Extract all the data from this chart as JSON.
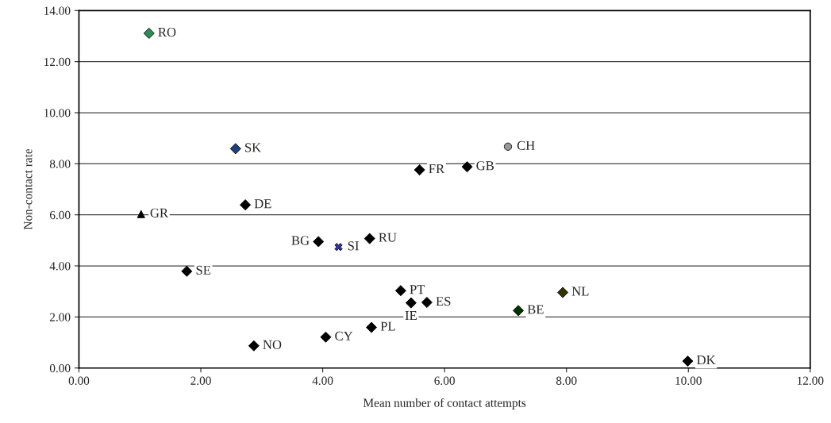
{
  "chart_data": {
    "type": "scatter",
    "xlabel": "Mean number of contact attempts",
    "ylabel": "Non-contact rate",
    "xlim": [
      0,
      12
    ],
    "xticks": [
      {
        "value": 0,
        "label": "0.00"
      },
      {
        "value": 2,
        "label": "2.00"
      },
      {
        "value": 4,
        "label": "4.00"
      },
      {
        "value": 6,
        "label": "6.00"
      },
      {
        "value": 8,
        "label": "8.00"
      },
      {
        "value": 10,
        "label": "10.00"
      },
      {
        "value": 12,
        "label": "12.00"
      }
    ],
    "ylim": [
      0,
      14
    ],
    "yticks": [
      {
        "value": 0,
        "label": "0.00"
      },
      {
        "value": 2,
        "label": "2.00"
      },
      {
        "value": 4,
        "label": "4.00"
      },
      {
        "value": 6,
        "label": "6.00"
      },
      {
        "value": 8,
        "label": "8.00"
      },
      {
        "value": 10,
        "label": "10.00"
      },
      {
        "value": 12,
        "label": "12.00"
      },
      {
        "value": 14,
        "label": "14.00"
      }
    ],
    "grid": "y",
    "legend": false,
    "marker": "diamond",
    "series": [
      {
        "name": "RO",
        "color": "#2e8b57",
        "x": [
          1.15
        ],
        "values": [
          13.11
        ]
      },
      {
        "name": "SK",
        "color": "#1f3f7a",
        "x": [
          2.57
        ],
        "values": [
          8.59
        ]
      },
      {
        "name": "GR",
        "color": "#000000",
        "x": [
          1.02
        ],
        "values": [
          6.03
        ],
        "marker": "triangle"
      },
      {
        "name": "DE",
        "color": "#000000",
        "x": [
          2.73
        ],
        "values": [
          6.39
        ]
      },
      {
        "name": "BG",
        "color": "#000000",
        "x": [
          3.93
        ],
        "values": [
          4.95
        ]
      },
      {
        "name": "SI",
        "color": "#333399",
        "x": [
          4.26
        ],
        "values": [
          4.74
        ],
        "marker": "cross"
      },
      {
        "name": "RU",
        "color": "#000000",
        "x": [
          4.77
        ],
        "values": [
          5.07
        ]
      },
      {
        "name": "SE",
        "color": "#000000",
        "x": [
          1.77
        ],
        "values": [
          3.79
        ]
      },
      {
        "name": "NO",
        "color": "#000000",
        "x": [
          2.87
        ],
        "values": [
          0.87
        ]
      },
      {
        "name": "CY",
        "color": "#000000",
        "x": [
          4.05
        ],
        "values": [
          1.21
        ]
      },
      {
        "name": "PL",
        "color": "#000000",
        "x": [
          4.8
        ],
        "values": [
          1.59
        ]
      },
      {
        "name": "CH",
        "color": "#999999",
        "x": [
          7.04
        ],
        "values": [
          8.67
        ],
        "marker": "circle"
      },
      {
        "name": "FR",
        "color": "#000000",
        "x": [
          5.59
        ],
        "values": [
          7.76
        ]
      },
      {
        "name": "GB",
        "color": "#000000",
        "x": [
          6.37
        ],
        "values": [
          7.88
        ]
      },
      {
        "name": "PT",
        "color": "#000000",
        "x": [
          5.28
        ],
        "values": [
          3.03
        ]
      },
      {
        "name": "IE",
        "color": "#000000",
        "x": [
          5.45
        ],
        "values": [
          2.55
        ]
      },
      {
        "name": "ES",
        "color": "#000000",
        "x": [
          5.71
        ],
        "values": [
          2.57
        ]
      },
      {
        "name": "BE",
        "color": "#003300",
        "x": [
          7.21
        ],
        "values": [
          2.25
        ]
      },
      {
        "name": "NL",
        "color": "#333300",
        "x": [
          7.94
        ],
        "values": [
          2.96
        ]
      },
      {
        "name": "DK",
        "color": "#000000",
        "x": [
          9.99
        ],
        "values": [
          0.27
        ]
      }
    ]
  }
}
